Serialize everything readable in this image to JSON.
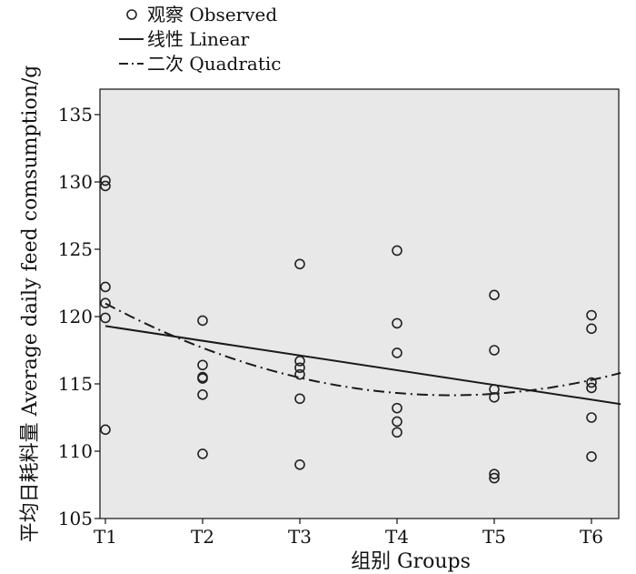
{
  "chart_data": {
    "type": "scatter",
    "xlabel": "组别  Groups",
    "ylabel": "平均日耗料量  Average daily feed comsumption/g",
    "categories": [
      "T1",
      "T2",
      "T3",
      "T4",
      "T5",
      "T6"
    ],
    "yticks": [
      105,
      110,
      115,
      120,
      125,
      130,
      135
    ],
    "ylim": [
      105,
      137
    ],
    "grid": false,
    "legend_position": "top-left",
    "plot_background": "#e8e8e8",
    "legend": [
      {
        "marker": "circle",
        "label": "观察  Observed"
      },
      {
        "marker": "solid-line",
        "label": "线性  Linear"
      },
      {
        "marker": "dash-dot-line",
        "label": "二次  Quadratic"
      }
    ],
    "series": [
      {
        "name": "观察  Observed",
        "kind": "points",
        "points": [
          {
            "x": "T1",
            "y": 130.1
          },
          {
            "x": "T1",
            "y": 129.7
          },
          {
            "x": "T1",
            "y": 122.2
          },
          {
            "x": "T1",
            "y": 121.0
          },
          {
            "x": "T1",
            "y": 119.9
          },
          {
            "x": "T1",
            "y": 111.6
          },
          {
            "x": "T2",
            "y": 119.7
          },
          {
            "x": "T2",
            "y": 116.4
          },
          {
            "x": "T2",
            "y": 115.5
          },
          {
            "x": "T2",
            "y": 115.4
          },
          {
            "x": "T2",
            "y": 114.2
          },
          {
            "x": "T2",
            "y": 109.8
          },
          {
            "x": "T3",
            "y": 123.9
          },
          {
            "x": "T3",
            "y": 116.7
          },
          {
            "x": "T3",
            "y": 116.2
          },
          {
            "x": "T3",
            "y": 115.7
          },
          {
            "x": "T3",
            "y": 113.9
          },
          {
            "x": "T3",
            "y": 109.0
          },
          {
            "x": "T4",
            "y": 124.9
          },
          {
            "x": "T4",
            "y": 119.5
          },
          {
            "x": "T4",
            "y": 117.3
          },
          {
            "x": "T4",
            "y": 113.2
          },
          {
            "x": "T4",
            "y": 112.2
          },
          {
            "x": "T4",
            "y": 111.4
          },
          {
            "x": "T5",
            "y": 121.6
          },
          {
            "x": "T5",
            "y": 117.5
          },
          {
            "x": "T5",
            "y": 114.6
          },
          {
            "x": "T5",
            "y": 114.0
          },
          {
            "x": "T5",
            "y": 108.3
          },
          {
            "x": "T5",
            "y": 108.0
          },
          {
            "x": "T6",
            "y": 120.1
          },
          {
            "x": "T6",
            "y": 119.1
          },
          {
            "x": "T6",
            "y": 115.1
          },
          {
            "x": "T6",
            "y": 114.7
          },
          {
            "x": "T6",
            "y": 112.5
          },
          {
            "x": "T6",
            "y": 109.6
          }
        ]
      },
      {
        "name": "线性  Linear",
        "kind": "line",
        "style": "solid",
        "x": [
          1,
          6.3
        ],
        "y": [
          119.3,
          113.5
        ]
      },
      {
        "name": "二次  Quadratic",
        "kind": "line",
        "style": "dash-dot",
        "x": [
          1,
          2,
          3,
          4,
          5,
          6,
          6.3
        ],
        "y": [
          121.0,
          117.7,
          115.3,
          114.4,
          114.4,
          115.1,
          115.9
        ]
      }
    ]
  }
}
